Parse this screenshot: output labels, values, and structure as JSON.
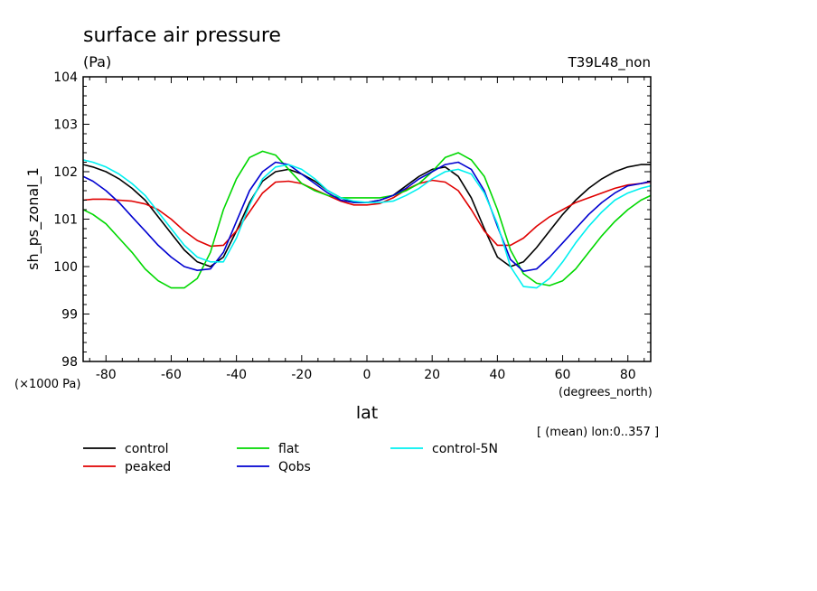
{
  "chart_data": {
    "type": "line",
    "title": "surface air pressure",
    "units": "(Pa)",
    "run_label": "T39L48_non",
    "ylabel": "sh_ps_zonal_1",
    "y_multiplier_label": "(×1000 Pa)",
    "xlabel": "lat",
    "x_units_label": "(degrees_north)",
    "mean_note": "[ (mean) lon:0..357 ]",
    "xlim": [
      -87,
      87
    ],
    "ylim": [
      98,
      104
    ],
    "x_ticks": [
      -80,
      -60,
      -40,
      -20,
      0,
      20,
      40,
      60,
      80
    ],
    "y_ticks": [
      98,
      99,
      100,
      101,
      102,
      103,
      104
    ],
    "grid": false,
    "legend_position": "bottom",
    "x": [
      -87,
      -84,
      -80,
      -76,
      -72,
      -68,
      -64,
      -60,
      -56,
      -52,
      -48,
      -44,
      -40,
      -36,
      -32,
      -28,
      -24,
      -20,
      -16,
      -12,
      -8,
      -4,
      0,
      4,
      8,
      12,
      16,
      20,
      24,
      28,
      32,
      36,
      40,
      44,
      48,
      52,
      56,
      60,
      64,
      68,
      72,
      76,
      80,
      84,
      87
    ],
    "series": [
      {
        "name": "control",
        "color": "#000000",
        "values": [
          102.15,
          102.1,
          102.0,
          101.85,
          101.65,
          101.4,
          101.05,
          100.7,
          100.35,
          100.1,
          100.0,
          100.2,
          100.75,
          101.35,
          101.8,
          102.0,
          102.05,
          101.95,
          101.8,
          101.6,
          101.45,
          101.35,
          101.35,
          101.4,
          101.5,
          101.7,
          101.9,
          102.05,
          102.1,
          101.9,
          101.45,
          100.8,
          100.2,
          100.0,
          100.1,
          100.4,
          100.75,
          101.1,
          101.4,
          101.65,
          101.85,
          102.0,
          102.1,
          102.15,
          102.15
        ]
      },
      {
        "name": "peaked",
        "color": "#e00000",
        "values": [
          101.4,
          101.42,
          101.42,
          101.4,
          101.38,
          101.32,
          101.2,
          101.0,
          100.75,
          100.55,
          100.43,
          100.45,
          100.75,
          101.15,
          101.55,
          101.78,
          101.8,
          101.75,
          101.62,
          101.5,
          101.38,
          101.3,
          101.3,
          101.33,
          101.45,
          101.62,
          101.75,
          101.82,
          101.78,
          101.6,
          101.2,
          100.75,
          100.45,
          100.45,
          100.6,
          100.85,
          101.05,
          101.2,
          101.35,
          101.45,
          101.55,
          101.65,
          101.72,
          101.75,
          101.78
        ]
      },
      {
        "name": "flat",
        "color": "#00d800",
        "values": [
          101.2,
          101.1,
          100.9,
          100.6,
          100.3,
          99.95,
          99.7,
          99.55,
          99.55,
          99.75,
          100.3,
          101.2,
          101.85,
          102.3,
          102.43,
          102.35,
          102.05,
          101.75,
          101.6,
          101.5,
          101.45,
          101.45,
          101.45,
          101.45,
          101.5,
          101.6,
          101.75,
          102.0,
          102.3,
          102.4,
          102.25,
          101.9,
          101.2,
          100.35,
          99.85,
          99.65,
          99.6,
          99.7,
          99.95,
          100.3,
          100.65,
          100.95,
          101.2,
          101.4,
          101.5
        ]
      },
      {
        "name": "Qobs",
        "color": "#0000d0",
        "values": [
          101.9,
          101.8,
          101.6,
          101.35,
          101.05,
          100.75,
          100.45,
          100.2,
          100.0,
          99.92,
          99.95,
          100.3,
          100.95,
          101.6,
          102.0,
          102.2,
          102.15,
          101.95,
          101.75,
          101.55,
          101.4,
          101.35,
          101.35,
          101.4,
          101.5,
          101.65,
          101.85,
          102.0,
          102.15,
          102.2,
          102.05,
          101.6,
          100.85,
          100.15,
          99.9,
          99.95,
          100.2,
          100.5,
          100.8,
          101.1,
          101.35,
          101.55,
          101.7,
          101.75,
          101.8
        ]
      },
      {
        "name": "control-5N",
        "color": "#00f0f0",
        "values": [
          102.25,
          102.2,
          102.1,
          101.95,
          101.75,
          101.5,
          101.15,
          100.8,
          100.45,
          100.2,
          100.1,
          100.1,
          100.6,
          101.3,
          101.85,
          102.1,
          102.15,
          102.05,
          101.85,
          101.6,
          101.45,
          101.38,
          101.35,
          101.35,
          101.38,
          101.5,
          101.65,
          101.85,
          102.0,
          102.05,
          101.95,
          101.55,
          100.9,
          100.0,
          99.58,
          99.55,
          99.75,
          100.1,
          100.5,
          100.85,
          101.15,
          101.4,
          101.55,
          101.65,
          101.7
        ]
      }
    ]
  }
}
